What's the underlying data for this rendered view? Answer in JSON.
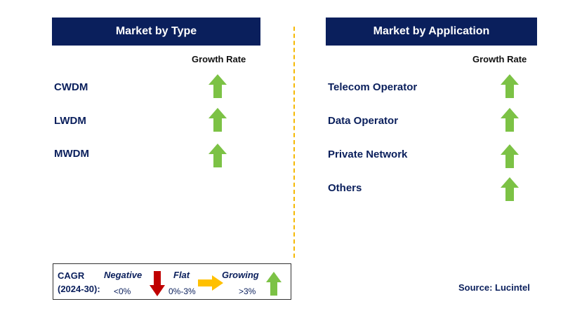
{
  "left_panel": {
    "title": "Market by Type",
    "growth_label": "Growth Rate",
    "items": [
      {
        "label": "CWDM",
        "trend": "growing"
      },
      {
        "label": "LWDM",
        "trend": "growing"
      },
      {
        "label": "MWDM",
        "trend": "growing"
      }
    ]
  },
  "right_panel": {
    "title": "Market by Application",
    "growth_label": "Growth Rate",
    "items": [
      {
        "label": "Telecom Operator",
        "trend": "growing"
      },
      {
        "label": "Data Operator",
        "trend": "growing"
      },
      {
        "label": "Private Network",
        "trend": "growing"
      },
      {
        "label": "Others",
        "trend": "growing"
      }
    ]
  },
  "legend": {
    "cagr_label": "CAGR",
    "period_label": "(2024-30):",
    "negative": {
      "label": "Negative",
      "range": "<0%",
      "color": "#c00000"
    },
    "flat": {
      "label": "Flat",
      "range": "0%-3%",
      "color": "#ffc000"
    },
    "growing": {
      "label": "Growing",
      "range": ">3%",
      "color": "#7cc245"
    }
  },
  "source": "Source: Lucintel",
  "colors": {
    "header_bg": "#0a1f5c",
    "text": "#0a1f5c",
    "divider": "#f5b800",
    "growing": "#7cc245"
  }
}
